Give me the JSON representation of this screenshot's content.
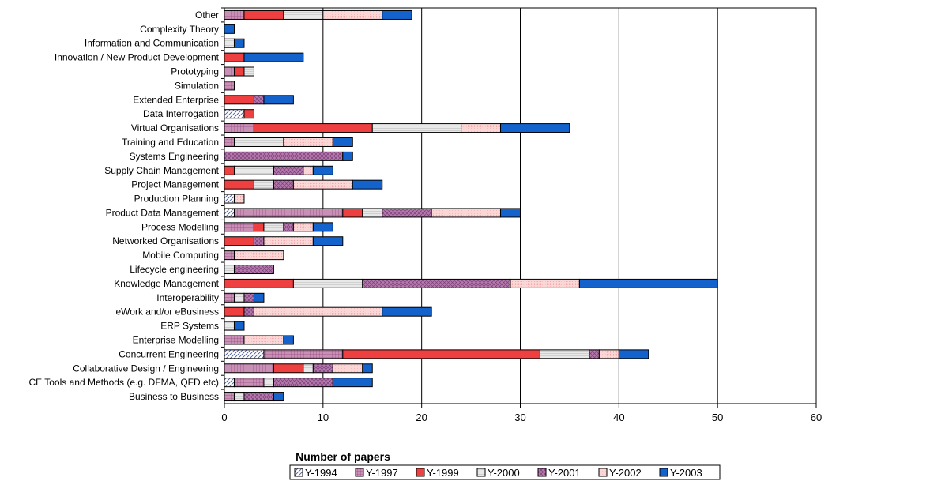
{
  "chart_data": {
    "type": "bar",
    "orientation": "horizontal",
    "stacked": true,
    "title": "",
    "xlabel": "Number of papers",
    "ylabel": "",
    "xlim": [
      0,
      60
    ],
    "x_ticks": [
      "0",
      "10",
      "20",
      "30",
      "40",
      "50",
      "60"
    ],
    "grid": "vertical major gridlines",
    "legend_position": "bottom",
    "categories": [
      "Other",
      "Complexity Theory",
      "Information and Communication",
      "Innovation / New Product Development",
      "Prototyping",
      "Simulation",
      "Extended Enterprise",
      "Data Interrogation",
      "Virtual Organisations",
      "Training and Education",
      "Systems Engineering",
      "Supply Chain Management",
      "Project Management",
      "Production Planning",
      "Product Data Management",
      "Process Modelling",
      "Networked Organisations",
      "Mobile Computing",
      "Lifecycle engineering",
      "Knowledge Management",
      "Interoperability",
      "eWork and/or eBusiness",
      "ERP Systems",
      "Enterprise Modelling",
      "Concurrent Engineering",
      "Collaborative Design / Engineering",
      "CE Tools and Methods (e.g. DFMA, QFD etc)",
      "Business to Business"
    ],
    "series": [
      {
        "name": "Y-1994",
        "color": "#c9cde8",
        "pattern": "diagonal-hatch",
        "values": [
          0,
          0,
          0,
          0,
          0,
          0,
          0,
          2,
          0,
          0,
          0,
          0,
          0,
          1,
          1,
          0,
          0,
          0,
          0,
          0,
          0,
          0,
          0,
          0,
          4,
          0,
          1,
          0
        ]
      },
      {
        "name": "Y-1997",
        "color": "#c890b4",
        "pattern": "fine-grid",
        "values": [
          2,
          0,
          0,
          0,
          1,
          1,
          0,
          0,
          3,
          1,
          0,
          0,
          0,
          0,
          11,
          3,
          0,
          1,
          0,
          0,
          1,
          0,
          0,
          2,
          8,
          5,
          3,
          1
        ]
      },
      {
        "name": "Y-1999",
        "color": "#ee4040",
        "pattern": "solid",
        "values": [
          4,
          0,
          0,
          2,
          1,
          0,
          3,
          1,
          12,
          0,
          0,
          1,
          3,
          0,
          2,
          1,
          3,
          0,
          0,
          7,
          0,
          2,
          0,
          0,
          20,
          3,
          0,
          0
        ]
      },
      {
        "name": "Y-2000",
        "color": "#e8e8e8",
        "pattern": "horizontal-lines",
        "values": [
          4,
          0,
          1,
          0,
          1,
          0,
          0,
          0,
          9,
          5,
          0,
          4,
          2,
          0,
          2,
          2,
          0,
          0,
          1,
          7,
          1,
          0,
          1,
          0,
          5,
          1,
          1,
          1
        ]
      },
      {
        "name": "Y-2001",
        "color": "#b47aac",
        "pattern": "cross-hatch",
        "values": [
          0,
          0,
          0,
          0,
          0,
          0,
          1,
          0,
          0,
          0,
          12,
          3,
          2,
          0,
          5,
          1,
          1,
          0,
          4,
          15,
          1,
          1,
          0,
          0,
          1,
          2,
          6,
          3
        ]
      },
      {
        "name": "Y-2002",
        "color": "#fbd6d6",
        "pattern": "dotted-grid",
        "values": [
          6,
          0,
          0,
          0,
          0,
          0,
          0,
          0,
          4,
          5,
          0,
          1,
          6,
          1,
          7,
          2,
          5,
          5,
          0,
          7,
          0,
          13,
          0,
          4,
          2,
          3,
          0,
          0
        ]
      },
      {
        "name": "Y-2003",
        "color": "#1463cc",
        "pattern": "solid",
        "values": [
          3,
          1,
          1,
          6,
          0,
          0,
          3,
          0,
          7,
          2,
          1,
          2,
          3,
          0,
          2,
          2,
          3,
          0,
          0,
          14,
          1,
          5,
          1,
          1,
          3,
          1,
          4,
          1
        ]
      }
    ]
  }
}
